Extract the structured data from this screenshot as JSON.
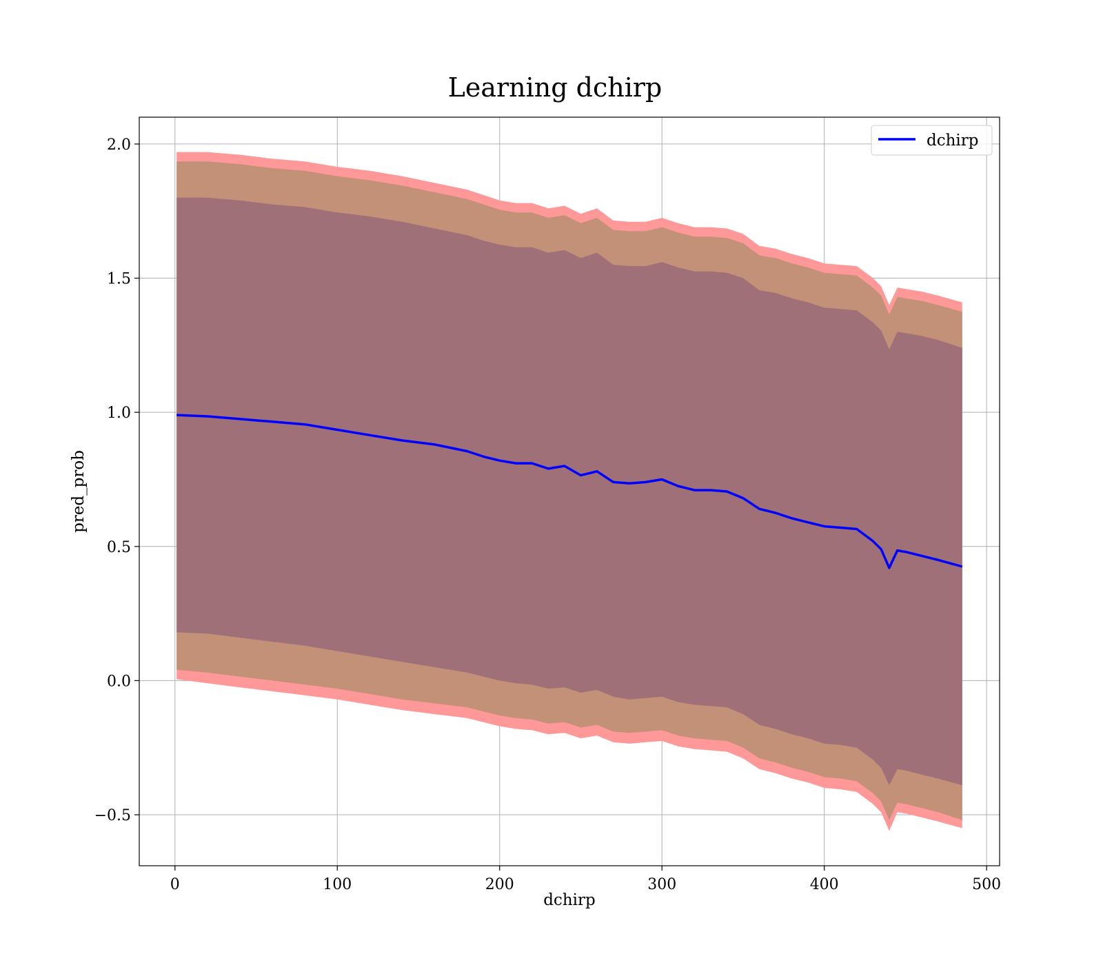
{
  "chart_data": {
    "type": "line",
    "title": "Learning dchirp",
    "xlabel": "dchirp",
    "ylabel": "pred_prob",
    "xlim": [
      -22,
      508
    ],
    "ylim": [
      -0.69,
      2.1
    ],
    "xticks": [
      0,
      100,
      200,
      300,
      400,
      500
    ],
    "yticks": [
      -0.5,
      0.0,
      0.5,
      1.0,
      1.5,
      2.0
    ],
    "xtick_labels": [
      "0",
      "100",
      "200",
      "300",
      "400",
      "500"
    ],
    "ytick_labels": [
      "−0.5",
      "0.0",
      "0.5",
      "1.0",
      "1.5",
      "2.0"
    ],
    "grid": true,
    "legend": {
      "position": "top-right",
      "entries": [
        "dchirp"
      ]
    },
    "colors": {
      "line": "#0000ff",
      "band_outer": "#ff9999",
      "band_middle": "#c39078",
      "band_inner": "#a07078"
    },
    "series": [
      {
        "name": "dchirp",
        "x": [
          1,
          20,
          40,
          60,
          80,
          100,
          120,
          140,
          160,
          180,
          190,
          200,
          210,
          220,
          230,
          240,
          250,
          260,
          270,
          280,
          290,
          300,
          310,
          320,
          330,
          340,
          350,
          360,
          370,
          380,
          390,
          400,
          410,
          420,
          430,
          435,
          440,
          445,
          450,
          460,
          470,
          485
        ],
        "values": [
          0.99,
          0.985,
          0.975,
          0.965,
          0.955,
          0.935,
          0.915,
          0.895,
          0.88,
          0.855,
          0.835,
          0.82,
          0.81,
          0.81,
          0.79,
          0.8,
          0.765,
          0.78,
          0.74,
          0.735,
          0.74,
          0.75,
          0.725,
          0.71,
          0.71,
          0.705,
          0.68,
          0.64,
          0.625,
          0.605,
          0.59,
          0.575,
          0.57,
          0.565,
          0.52,
          0.49,
          0.42,
          0.485,
          0.48,
          0.465,
          0.45,
          0.425
        ]
      }
    ],
    "bands": [
      {
        "name": "outer",
        "lower": [
          0.005,
          -0.01,
          -0.025,
          -0.04,
          -0.055,
          -0.07,
          -0.09,
          -0.11,
          -0.125,
          -0.14,
          -0.155,
          -0.17,
          -0.18,
          -0.185,
          -0.2,
          -0.195,
          -0.215,
          -0.205,
          -0.23,
          -0.235,
          -0.23,
          -0.225,
          -0.245,
          -0.255,
          -0.26,
          -0.265,
          -0.29,
          -0.33,
          -0.345,
          -0.365,
          -0.38,
          -0.4,
          -0.405,
          -0.415,
          -0.46,
          -0.49,
          -0.56,
          -0.49,
          -0.495,
          -0.51,
          -0.525,
          -0.55
        ],
        "upper": [
          1.97,
          1.97,
          1.96,
          1.945,
          1.935,
          1.915,
          1.9,
          1.88,
          1.855,
          1.83,
          1.81,
          1.79,
          1.78,
          1.78,
          1.76,
          1.77,
          1.74,
          1.76,
          1.715,
          1.71,
          1.71,
          1.725,
          1.705,
          1.69,
          1.69,
          1.685,
          1.665,
          1.62,
          1.61,
          1.59,
          1.575,
          1.555,
          1.55,
          1.545,
          1.5,
          1.47,
          1.4,
          1.465,
          1.46,
          1.45,
          1.435,
          1.41
        ]
      },
      {
        "name": "middle",
        "lower": [
          0.04,
          0.03,
          0.015,
          0.0,
          -0.015,
          -0.03,
          -0.05,
          -0.07,
          -0.085,
          -0.1,
          -0.115,
          -0.13,
          -0.14,
          -0.145,
          -0.16,
          -0.155,
          -0.175,
          -0.165,
          -0.19,
          -0.195,
          -0.19,
          -0.185,
          -0.205,
          -0.215,
          -0.22,
          -0.225,
          -0.25,
          -0.29,
          -0.305,
          -0.325,
          -0.34,
          -0.36,
          -0.365,
          -0.375,
          -0.42,
          -0.45,
          -0.52,
          -0.455,
          -0.46,
          -0.475,
          -0.49,
          -0.52
        ],
        "upper": [
          1.935,
          1.935,
          1.925,
          1.91,
          1.9,
          1.88,
          1.865,
          1.845,
          1.82,
          1.795,
          1.775,
          1.755,
          1.745,
          1.745,
          1.725,
          1.735,
          1.705,
          1.725,
          1.68,
          1.675,
          1.675,
          1.69,
          1.67,
          1.655,
          1.655,
          1.65,
          1.63,
          1.585,
          1.575,
          1.555,
          1.54,
          1.52,
          1.515,
          1.51,
          1.465,
          1.435,
          1.365,
          1.43,
          1.425,
          1.415,
          1.4,
          1.375
        ]
      },
      {
        "name": "inner",
        "lower": [
          0.18,
          0.175,
          0.16,
          0.145,
          0.13,
          0.11,
          0.09,
          0.07,
          0.05,
          0.03,
          0.015,
          0.0,
          -0.01,
          -0.015,
          -0.03,
          -0.025,
          -0.045,
          -0.035,
          -0.06,
          -0.07,
          -0.065,
          -0.06,
          -0.08,
          -0.09,
          -0.095,
          -0.1,
          -0.125,
          -0.165,
          -0.18,
          -0.2,
          -0.215,
          -0.235,
          -0.24,
          -0.25,
          -0.295,
          -0.325,
          -0.39,
          -0.33,
          -0.335,
          -0.35,
          -0.365,
          -0.39
        ],
        "upper": [
          1.8,
          1.8,
          1.79,
          1.775,
          1.765,
          1.745,
          1.73,
          1.71,
          1.685,
          1.66,
          1.64,
          1.625,
          1.615,
          1.615,
          1.595,
          1.605,
          1.575,
          1.595,
          1.55,
          1.545,
          1.545,
          1.56,
          1.54,
          1.525,
          1.525,
          1.52,
          1.5,
          1.455,
          1.445,
          1.425,
          1.41,
          1.39,
          1.385,
          1.38,
          1.335,
          1.305,
          1.235,
          1.3,
          1.295,
          1.285,
          1.27,
          1.24
        ]
      }
    ]
  }
}
